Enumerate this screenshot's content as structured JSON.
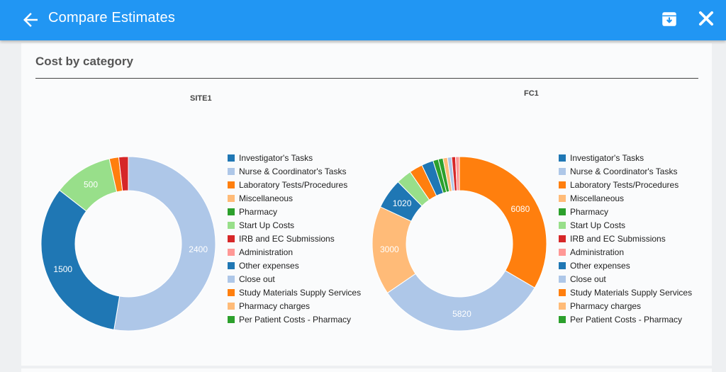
{
  "header": {
    "title": "Compare Estimates",
    "background": "#2196f3"
  },
  "section": {
    "title": "Cost by category"
  },
  "categories": [
    "Investigator's Tasks",
    "Nurse & Coordinator's Tasks",
    "Laboratory Tests/Procedures",
    "Miscellaneous",
    "Pharmacy",
    "Start Up Costs",
    "IRB and EC Submissions",
    "Administration",
    "Other expenses",
    "Close out",
    "Study Materials Supply Services",
    "Pharmacy charges",
    "Per Patient Costs - Pharmacy"
  ],
  "colors": [
    "#1f77b4",
    "#aec7e8",
    "#ff7f0e",
    "#ffbb78",
    "#2ca02c",
    "#98df8a",
    "#d62728",
    "#ff9896",
    "#1f77b4",
    "#aec7e8",
    "#ff7f0e",
    "#ffbb78",
    "#2ca02c"
  ],
  "chart_data": [
    {
      "type": "pie",
      "title": "SITE1",
      "start_category": "Nurse & Coordinator's Tasks",
      "slices": [
        {
          "category": "Nurse & Coordinator's Tasks",
          "value": 2400,
          "label": "2400",
          "color": "#aec7e8"
        },
        {
          "category": "Investigator's Tasks",
          "value": 1500,
          "label": "1500",
          "color": "#1f77b4"
        },
        {
          "category": "Start Up Costs",
          "value": 500,
          "label": "500",
          "color": "#98df8a"
        },
        {
          "category": "Laboratory Tests/Procedures",
          "value": 80,
          "label": "",
          "color": "#ff7f0e"
        },
        {
          "category": "IRB and EC Submissions",
          "value": 80,
          "label": "",
          "color": "#d62728"
        }
      ]
    },
    {
      "type": "pie",
      "title": "FC1",
      "start_category": "Laboratory Tests/Procedures",
      "slices": [
        {
          "category": "Laboratory Tests/Procedures",
          "value": 6080,
          "label": "6080",
          "color": "#ff7f0e"
        },
        {
          "category": "Nurse & Coordinator's Tasks",
          "value": 5820,
          "label": "5820",
          "color": "#aec7e8"
        },
        {
          "category": "Miscellaneous",
          "value": 3000,
          "label": "3000",
          "color": "#ffbb78"
        },
        {
          "category": "Investigator's Tasks",
          "value": 1020,
          "label": "1020",
          "color": "#1f77b4"
        },
        {
          "category": "Start Up Costs",
          "value": 520,
          "label": "",
          "color": "#98df8a"
        },
        {
          "category": "Study Materials Supply Services",
          "value": 450,
          "label": "",
          "color": "#ff7f0e"
        },
        {
          "category": "Other expenses",
          "value": 400,
          "label": "",
          "color": "#1f77b4"
        },
        {
          "category": "Per Patient Costs - Pharmacy",
          "value": 180,
          "label": "",
          "color": "#2ca02c"
        },
        {
          "category": "Pharmacy",
          "value": 160,
          "label": "",
          "color": "#2ca02c"
        },
        {
          "category": "Pharmacy charges",
          "value": 150,
          "label": "",
          "color": "#ffbb78"
        },
        {
          "category": "Close out",
          "value": 140,
          "label": "",
          "color": "#aec7e8"
        },
        {
          "category": "IRB and EC Submissions",
          "value": 130,
          "label": "",
          "color": "#d62728"
        },
        {
          "category": "Administration",
          "value": 130,
          "label": "",
          "color": "#ff9896"
        }
      ]
    }
  ]
}
